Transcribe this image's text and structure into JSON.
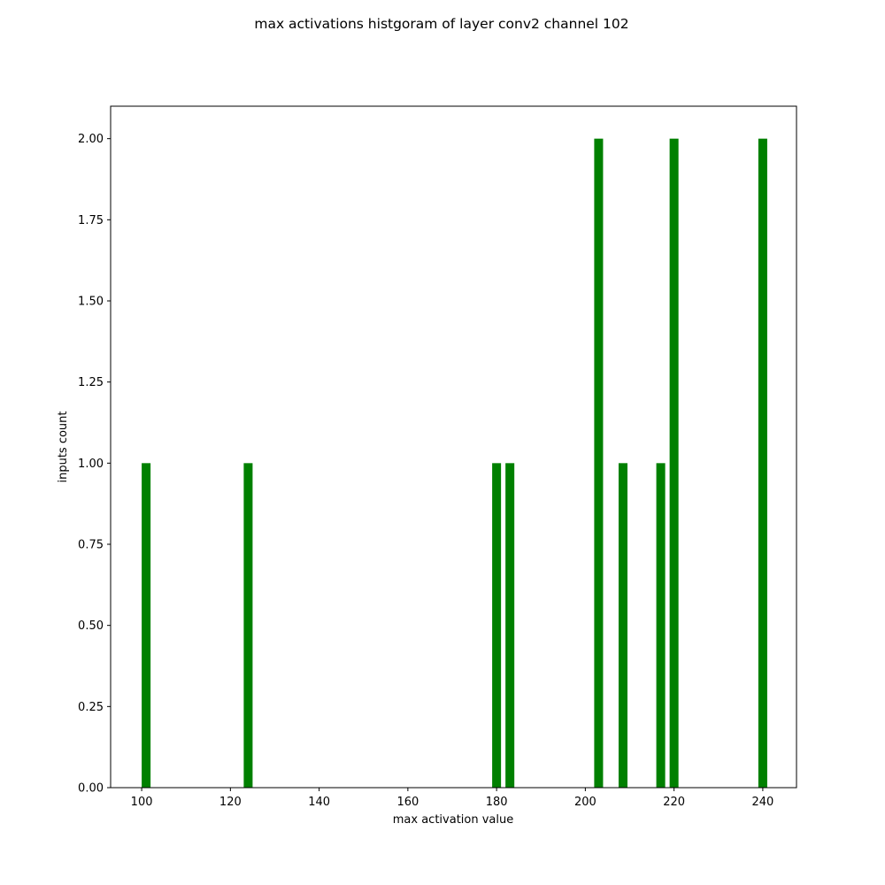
{
  "chart_data": {
    "type": "bar",
    "title": "max activations histgoram of layer conv2 channel 102",
    "xlabel": "max activation value",
    "ylabel": "inputs count",
    "xlim": [
      93,
      247.6
    ],
    "ylim": [
      0,
      2.1
    ],
    "x_ticks": [
      100,
      120,
      140,
      160,
      180,
      200,
      220,
      240
    ],
    "x_tick_labels": [
      "100",
      "120",
      "140",
      "160",
      "180",
      "200",
      "220",
      "240"
    ],
    "y_ticks": [
      0,
      0.25,
      0.5,
      0.75,
      1.0,
      1.25,
      1.5,
      1.75,
      2.0
    ],
    "y_tick_labels": [
      "0.00",
      "0.25",
      "0.50",
      "0.75",
      "1.00",
      "1.25",
      "1.50",
      "1.75",
      "2.00"
    ],
    "bar_width": 2,
    "bar_color": "#008000",
    "grid": false,
    "series": [
      {
        "x": [
          101,
          124,
          180,
          183,
          203,
          208.5,
          217,
          220,
          240
        ],
        "values": [
          1,
          1,
          1,
          1,
          2,
          1,
          1,
          2,
          2
        ]
      }
    ]
  }
}
